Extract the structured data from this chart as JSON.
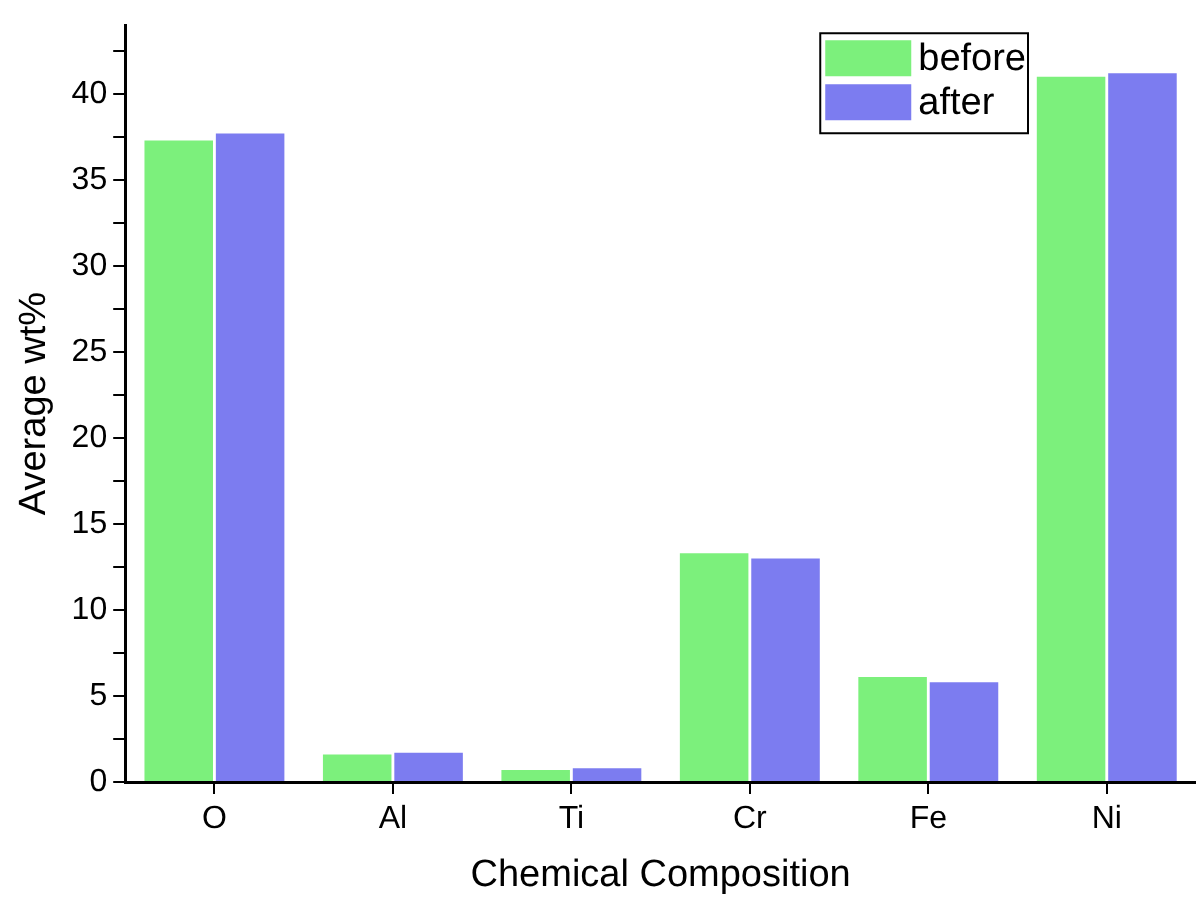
{
  "chart_data": {
    "type": "bar",
    "xlabel": "Chemical Composition",
    "ylabel": "Average wt%",
    "categories": [
      "O",
      "Al",
      "Ti",
      "Cr",
      "Fe",
      "Ni"
    ],
    "series": [
      {
        "name": "before",
        "color": "#7cf07c",
        "values": [
          37.3,
          1.6,
          0.7,
          13.3,
          6.1,
          41.0
        ]
      },
      {
        "name": "after",
        "color": "#7c7cf0",
        "values": [
          37.7,
          1.7,
          0.8,
          13.0,
          5.8,
          41.2
        ]
      }
    ],
    "ylim": [
      0,
      44
    ],
    "yticks": [
      0,
      {
        "value": 2.5,
        "label": null
      },
      5,
      {
        "value": 7.5,
        "label": null
      },
      10,
      {
        "value": 12.5,
        "label": null
      },
      15,
      {
        "value": 17.5,
        "label": null
      },
      20,
      {
        "value": 22.5,
        "label": null
      },
      25,
      {
        "value": 27.5,
        "label": null
      },
      30,
      {
        "value": 32.5,
        "label": null
      },
      35,
      {
        "value": 37.5,
        "label": null
      },
      40,
      {
        "value": 42.5,
        "label": null
      }
    ],
    "legend": "top right",
    "grid": false
  }
}
